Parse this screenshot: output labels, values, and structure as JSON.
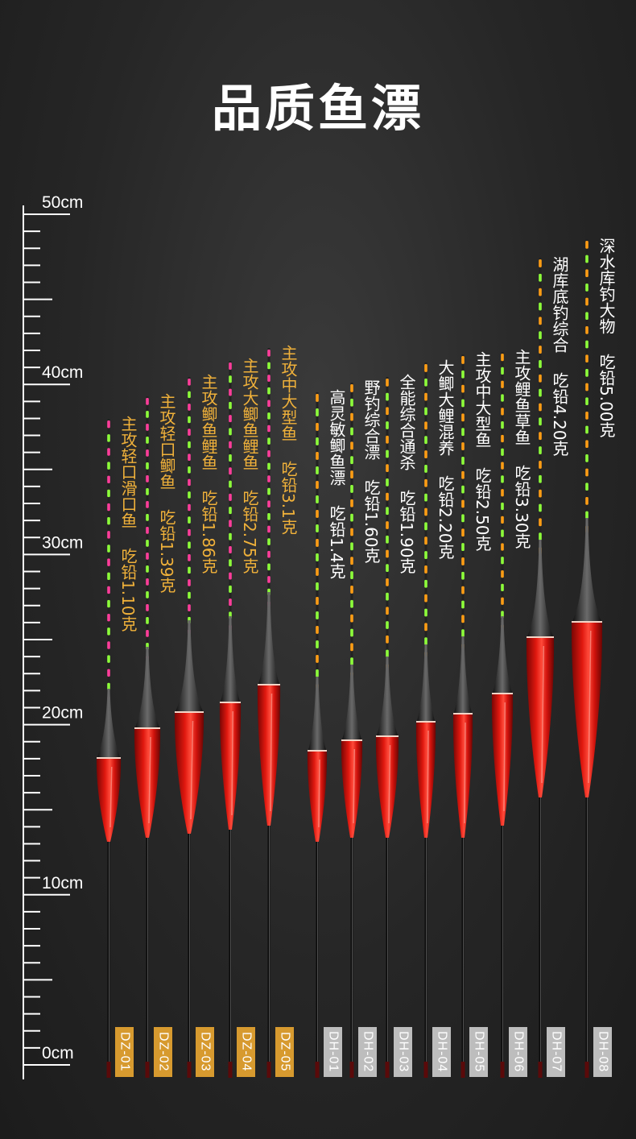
{
  "title": "品质鱼漂",
  "ruler": {
    "labels": [
      "50cm",
      "40cm",
      "30cm",
      "20cm",
      "10cm",
      "0cm"
    ]
  },
  "colors": {
    "dz_desc": "#f0b13a",
    "dh_desc": "#ffffff",
    "dz_tag": "#d79a2f",
    "dh_tag": "#bdbdbd",
    "body_red": "#d9140f",
    "pink": "#ff3d9a",
    "green": "#8dff3a",
    "orange": "#ff9d14"
  },
  "floats": [
    {
      "code": "DZ-01",
      "name": "主攻轻口滑口鱼",
      "weight": "吃铅1.10克",
      "group": "dz"
    },
    {
      "code": "DZ-02",
      "name": "主攻轻口鲫鱼",
      "weight": "吃铅1.39克",
      "group": "dz"
    },
    {
      "code": "DZ-03",
      "name": "主攻鲫鱼鲤鱼",
      "weight": "吃铅1.86克",
      "group": "dz"
    },
    {
      "code": "DZ-04",
      "name": "主攻大鲫鱼鲤鱼",
      "weight": "吃铅2.75克",
      "group": "dz"
    },
    {
      "code": "DZ-05",
      "name": "主攻中大型鱼",
      "weight": "吃铅3.1克",
      "group": "dz"
    },
    {
      "code": "DH-01",
      "name": "高灵敏鲫鱼漂",
      "weight": "吃铅1.4克",
      "group": "dh"
    },
    {
      "code": "DH-02",
      "name": "野钓综合漂",
      "weight": "吃铅1.60克",
      "group": "dh"
    },
    {
      "code": "DH-03",
      "name": "全能综合通杀",
      "weight": "吃铅1.90克",
      "group": "dh"
    },
    {
      "code": "DH-04",
      "name": "大鲫大鲤混养",
      "weight": "吃铅2.20克",
      "group": "dh"
    },
    {
      "code": "DH-05",
      "name": "主攻中大型鱼",
      "weight": "吃铅2.50克",
      "group": "dh"
    },
    {
      "code": "DH-06",
      "name": "主攻鲤鱼草鱼",
      "weight": "吃铅3.30克",
      "group": "dh"
    },
    {
      "code": "DH-07",
      "name": "湖库底钓综合",
      "weight": "吃铅4.20克",
      "group": "dh"
    },
    {
      "code": "DH-08",
      "name": "深水库钓大物",
      "weight": "吃铅5.00克",
      "group": "dh"
    }
  ]
}
